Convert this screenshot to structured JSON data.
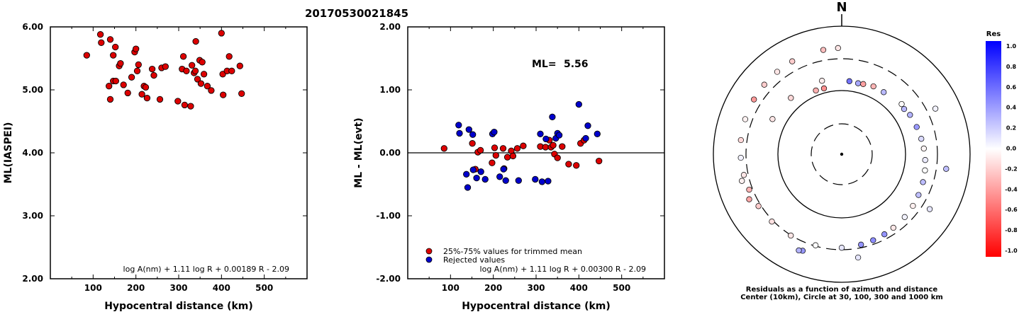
{
  "page_title": "20170530021845",
  "chart_data": [
    {
      "type": "scatter",
      "ylabel": "ML(IASPEI)",
      "xlabel": "Hypocentral distance (km)",
      "xlim": [
        0,
        600
      ],
      "ylim": [
        2.0,
        6.0
      ],
      "x_ticks": [
        "100",
        "200",
        "300",
        "400",
        "500"
      ],
      "y_ticks": [
        "2.00",
        "3.00",
        "4.00",
        "5.00",
        "6.00"
      ],
      "formula": "log A(nm) + 1.11 log R + 0.00189 R - 2.09",
      "point_color": "#dd0000",
      "points": [
        [
          85,
          5.55
        ],
        [
          117,
          5.88
        ],
        [
          119,
          5.75
        ],
        [
          137,
          5.06
        ],
        [
          140,
          5.8
        ],
        [
          140,
          4.85
        ],
        [
          147,
          5.55
        ],
        [
          147,
          5.14
        ],
        [
          152,
          5.68
        ],
        [
          153,
          5.14
        ],
        [
          161,
          5.38
        ],
        [
          164,
          5.42
        ],
        [
          171,
          5.08
        ],
        [
          181,
          4.95
        ],
        [
          190,
          5.2
        ],
        [
          197,
          5.6
        ],
        [
          200,
          5.65
        ],
        [
          203,
          5.3
        ],
        [
          206,
          5.4
        ],
        [
          214,
          4.93
        ],
        [
          219,
          5.06
        ],
        [
          223,
          5.04
        ],
        [
          226,
          4.87
        ],
        [
          238,
          5.33
        ],
        [
          242,
          5.23
        ],
        [
          256,
          4.85
        ],
        [
          260,
          5.35
        ],
        [
          269,
          5.37
        ],
        [
          298,
          4.82
        ],
        [
          308,
          5.33
        ],
        [
          311,
          5.53
        ],
        [
          314,
          4.76
        ],
        [
          318,
          5.3
        ],
        [
          328,
          4.74
        ],
        [
          331,
          5.39
        ],
        [
          336,
          5.27
        ],
        [
          339,
          5.3
        ],
        [
          340,
          5.77
        ],
        [
          344,
          5.17
        ],
        [
          349,
          5.47
        ],
        [
          352,
          5.1
        ],
        [
          355,
          5.44
        ],
        [
          359,
          5.25
        ],
        [
          367,
          5.06
        ],
        [
          376,
          4.99
        ],
        [
          400,
          5.9
        ],
        [
          403,
          5.25
        ],
        [
          404,
          4.92
        ],
        [
          413,
          5.3
        ],
        [
          418,
          5.53
        ],
        [
          424,
          5.3
        ],
        [
          443,
          5.38
        ],
        [
          447,
          4.94
        ]
      ]
    },
    {
      "type": "scatter",
      "ylabel": "ML - ML(evt)",
      "xlabel": "Hypocentral distance (km)",
      "xlim": [
        0,
        600
      ],
      "ylim": [
        -2.0,
        2.0
      ],
      "x_ticks": [
        "100",
        "200",
        "300",
        "400",
        "500"
      ],
      "y_ticks": [
        "-2.00",
        "-1.00",
        "0.00",
        "1.00",
        "2.00"
      ],
      "ml_label": "ML=",
      "ml_value": "5.56",
      "formula": "log A(nm) + 1.11 log R + 0.00300 R - 2.09",
      "legend": {
        "position": "bottom-left",
        "items": [
          {
            "label": "25%-75% values for trimmed mean",
            "color": "#dd0000"
          },
          {
            "label": "Rejected values",
            "color": "#0000cc"
          }
        ]
      },
      "series": [
        {
          "name": "25%-75% values for trimmed mean",
          "color": "#dd0000",
          "points": [
            [
              85,
              0.07
            ],
            [
              151,
              0.15
            ],
            [
              158,
              -0.26
            ],
            [
              164,
              0.01
            ],
            [
              170,
              0.04
            ],
            [
              197,
              -0.16
            ],
            [
              203,
              0.08
            ],
            [
              206,
              -0.04
            ],
            [
              223,
              0.07
            ],
            [
              225,
              -0.25
            ],
            [
              233,
              -0.07
            ],
            [
              242,
              0.03
            ],
            [
              246,
              -0.05
            ],
            [
              256,
              0.07
            ],
            [
              270,
              0.11
            ],
            [
              310,
              0.1
            ],
            [
              322,
              0.09
            ],
            [
              331,
              0.2
            ],
            [
              335,
              0.09
            ],
            [
              340,
              0.12
            ],
            [
              343,
              -0.02
            ],
            [
              350,
              -0.08
            ],
            [
              361,
              0.1
            ],
            [
              376,
              -0.18
            ],
            [
              394,
              -0.2
            ],
            [
              404,
              0.15
            ],
            [
              412,
              0.2
            ],
            [
              447,
              -0.13
            ]
          ]
        },
        {
          "name": "Rejected values",
          "color": "#0000cc",
          "points": [
            [
              119,
              0.44
            ],
            [
              121,
              0.31
            ],
            [
              137,
              -0.34
            ],
            [
              140,
              -0.55
            ],
            [
              143,
              0.37
            ],
            [
              152,
              0.29
            ],
            [
              153,
              -0.27
            ],
            [
              161,
              -0.4
            ],
            [
              171,
              -0.3
            ],
            [
              181,
              -0.42
            ],
            [
              198,
              0.3
            ],
            [
              202,
              0.33
            ],
            [
              215,
              -0.38
            ],
            [
              224,
              -0.26
            ],
            [
              229,
              -0.44
            ],
            [
              259,
              -0.44
            ],
            [
              298,
              -0.42
            ],
            [
              310,
              0.3
            ],
            [
              314,
              -0.46
            ],
            [
              323,
              0.22
            ],
            [
              328,
              -0.45
            ],
            [
              338,
              0.57
            ],
            [
              346,
              0.23
            ],
            [
              350,
              0.31
            ],
            [
              354,
              0.28
            ],
            [
              400,
              0.77
            ],
            [
              416,
              0.23
            ],
            [
              421,
              0.43
            ],
            [
              443,
              0.3
            ]
          ]
        }
      ]
    },
    {
      "type": "polar-scatter",
      "north_label": "N",
      "caption": [
        "Residuals as a function of azimuth and distance",
        "Center (10km), Circle at 30, 100, 300 and 1000 km"
      ],
      "circles_km": [
        30,
        100,
        300,
        1000
      ],
      "colorbar": {
        "title": "Res",
        "ticks": [
          "1.0",
          "0.8",
          "0.6",
          "0.4",
          "0.2",
          "0.0",
          "-0.2",
          "-0.4",
          "-0.6",
          "-0.8",
          "-1.0"
        ],
        "top_color": "#0000ff",
        "mid_color": "#ffffff",
        "bottom_color": "#ff0000"
      },
      "points": [
        {
          "az": 345,
          "dist": 117,
          "res": -0.44
        },
        {
          "az": 338,
          "dist": 119,
          "res": -0.31
        },
        {
          "az": 13,
          "dist": 137,
          "res": 0.34
        },
        {
          "az": 6,
          "dist": 140,
          "res": 0.55
        },
        {
          "az": 17,
          "dist": 140,
          "res": -0.37
        },
        {
          "az": 25,
          "dist": 147,
          "res": -0.29
        },
        {
          "az": 34,
          "dist": 147,
          "res": 0.27
        },
        {
          "az": 318,
          "dist": 152,
          "res": -0.15
        },
        {
          "az": 345,
          "dist": 153,
          "res": -0.07
        },
        {
          "az": 54,
          "dist": 158,
          "res": 0.28
        },
        {
          "az": 297,
          "dist": 161,
          "res": -0.1
        },
        {
          "az": 50,
          "dist": 164,
          "res": -0.01
        },
        {
          "az": 60,
          "dist": 168,
          "res": 0.3
        },
        {
          "az": 70,
          "dist": 173,
          "res": 0.4
        },
        {
          "az": 79,
          "dist": 181,
          "res": 0.15
        },
        {
          "az": 86,
          "dist": 189,
          "res": -0.04
        },
        {
          "az": 94,
          "dist": 198,
          "res": 0.08
        },
        {
          "az": 101,
          "dist": 206,
          "res": 0.0
        },
        {
          "az": 109,
          "dist": 214,
          "res": 0.26
        },
        {
          "az": 118,
          "dist": 222,
          "res": 0.25
        },
        {
          "az": 126,
          "dist": 230,
          "res": -0.06
        },
        {
          "az": 135,
          "dist": 238,
          "res": 0.05
        },
        {
          "az": 145,
          "dist": 246,
          "res": -0.09
        },
        {
          "az": 152,
          "dist": 254,
          "res": 0.42
        },
        {
          "az": 160,
          "dist": 262,
          "res": 0.45
        },
        {
          "az": 168,
          "dist": 270,
          "res": 0.42
        },
        {
          "az": 180,
          "dist": 280,
          "res": 0.1
        },
        {
          "az": 196,
          "dist": 292,
          "res": 0.0
        },
        {
          "az": 212,
          "dist": 304,
          "res": -0.1
        },
        {
          "az": 226,
          "dist": 316,
          "res": -0.12
        },
        {
          "az": 238,
          "dist": 328,
          "res": -0.2
        },
        {
          "az": 249,
          "dist": 340,
          "res": -0.3
        },
        {
          "az": 258,
          "dist": 352,
          "res": -0.1
        },
        {
          "az": 268,
          "dist": 364,
          "res": 0.05
        },
        {
          "az": 278,
          "dist": 376,
          "res": -0.15
        },
        {
          "az": 290,
          "dist": 388,
          "res": -0.05
        },
        {
          "az": 302,
          "dist": 400,
          "res": -0.4
        },
        {
          "az": 312,
          "dist": 410,
          "res": -0.2
        },
        {
          "az": 322,
          "dist": 420,
          "res": -0.1
        },
        {
          "az": 332,
          "dist": 430,
          "res": -0.2
        },
        {
          "az": 350,
          "dist": 440,
          "res": -0.25
        },
        {
          "az": 358,
          "dist": 447,
          "res": -0.1
        },
        {
          "az": 64,
          "dist": 410,
          "res": 0.05
        },
        {
          "az": 98,
          "dist": 430,
          "res": 0.25
        },
        {
          "az": 122,
          "dist": 404,
          "res": 0.1
        },
        {
          "az": 171,
          "dist": 420,
          "res": 0.1
        },
        {
          "az": 202,
          "dist": 412,
          "res": 0.4
        },
        {
          "az": 204,
          "dist": 430,
          "res": 0.3
        },
        {
          "az": 255,
          "dist": 398,
          "res": -0.05
        },
        {
          "az": 244,
          "dist": 392,
          "res": -0.35
        }
      ]
    }
  ]
}
